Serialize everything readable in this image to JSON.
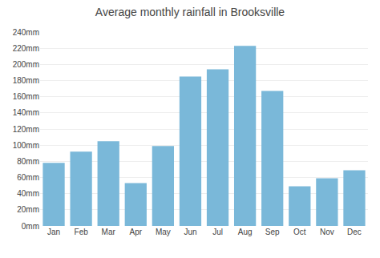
{
  "chart_data": {
    "type": "bar",
    "title": "Average monthly rainfall in Brooksville",
    "categories": [
      "Jan",
      "Feb",
      "Mar",
      "Apr",
      "May",
      "Jun",
      "Jul",
      "Aug",
      "Sep",
      "Oct",
      "Nov",
      "Dec"
    ],
    "values": [
      78,
      92,
      105,
      53,
      99,
      185,
      194,
      223,
      167,
      49,
      59,
      69
    ],
    "color": "#7ab8d9",
    "ylim": [
      0,
      240
    ],
    "yticks": [
      {
        "value": 0,
        "label": "0mm"
      },
      {
        "value": 20,
        "label": "20mm"
      },
      {
        "value": 40,
        "label": "40mm"
      },
      {
        "value": 60,
        "label": "60mm"
      },
      {
        "value": 80,
        "label": "80mm"
      },
      {
        "value": 100,
        "label": "100mm"
      },
      {
        "value": 120,
        "label": "120mm"
      },
      {
        "value": 140,
        "label": "140mm"
      },
      {
        "value": 160,
        "label": "160mm"
      },
      {
        "value": 180,
        "label": "180mm"
      },
      {
        "value": 200,
        "label": "200mm"
      },
      {
        "value": 220,
        "label": "220mm"
      },
      {
        "value": 240,
        "label": "240mm"
      }
    ],
    "grid": true
  }
}
